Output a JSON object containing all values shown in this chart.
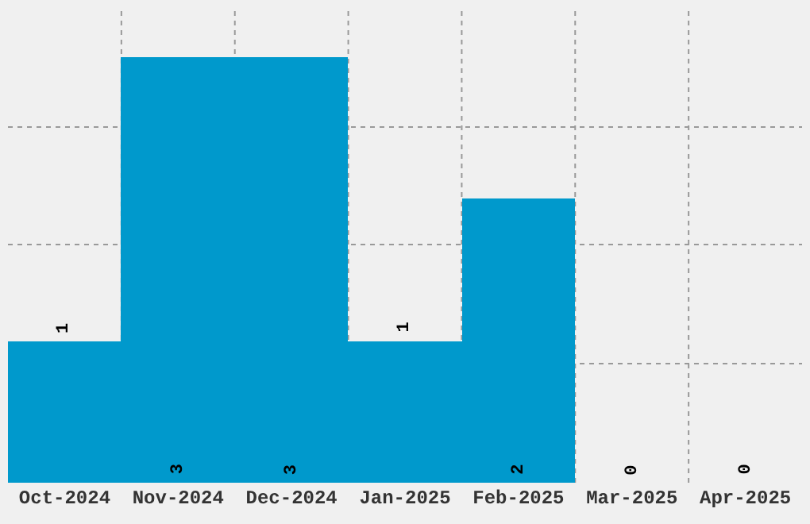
{
  "chart_data": {
    "type": "bar",
    "categories": [
      "Oct-2024",
      "Nov-2024",
      "Dec-2024",
      "Jan-2025",
      "Feb-2025",
      "Mar-2025",
      "Apr-2025"
    ],
    "values": [
      1,
      3,
      3,
      1,
      2,
      0,
      0
    ],
    "color": "#0099cc",
    "ylim": [
      0,
      3.35
    ],
    "yticks": [
      {
        "value": 0.84,
        "label": null
      },
      {
        "value": 1.68,
        "label": null
      },
      {
        "value": 2.51,
        "label": null
      }
    ],
    "tick_labels": "x",
    "grid": true,
    "data_labels": true
  }
}
